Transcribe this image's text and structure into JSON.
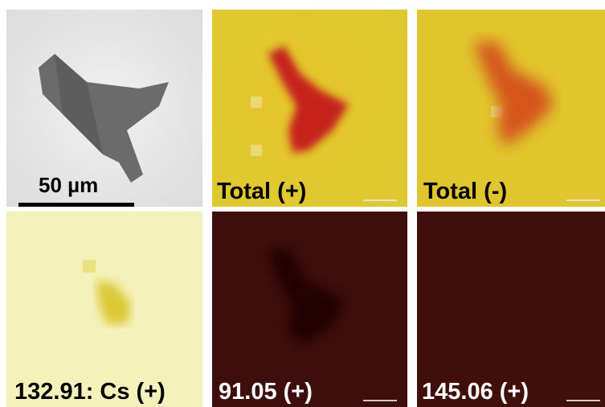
{
  "figure": {
    "panels": [
      {
        "id": "sem",
        "label": "",
        "scale_text": "50 µm"
      },
      {
        "id": "total-pos",
        "label": "Total (+)"
      },
      {
        "id": "total-neg",
        "label": "Total (-)"
      },
      {
        "id": "cs",
        "label": "132.91: Cs (+)"
      },
      {
        "id": "m91",
        "label": "91.05 (+)"
      },
      {
        "id": "m145",
        "label": "145.06 (+)"
      }
    ],
    "colors": {
      "yellow_bg": "#e6c82a",
      "red_particle": "#c8281a",
      "dark_bg": "#3a0c0a",
      "pale_yellow": "#f4f0b0",
      "sem_bg": "#e9e9e9",
      "sem_particle": "#6e6e6e"
    }
  }
}
